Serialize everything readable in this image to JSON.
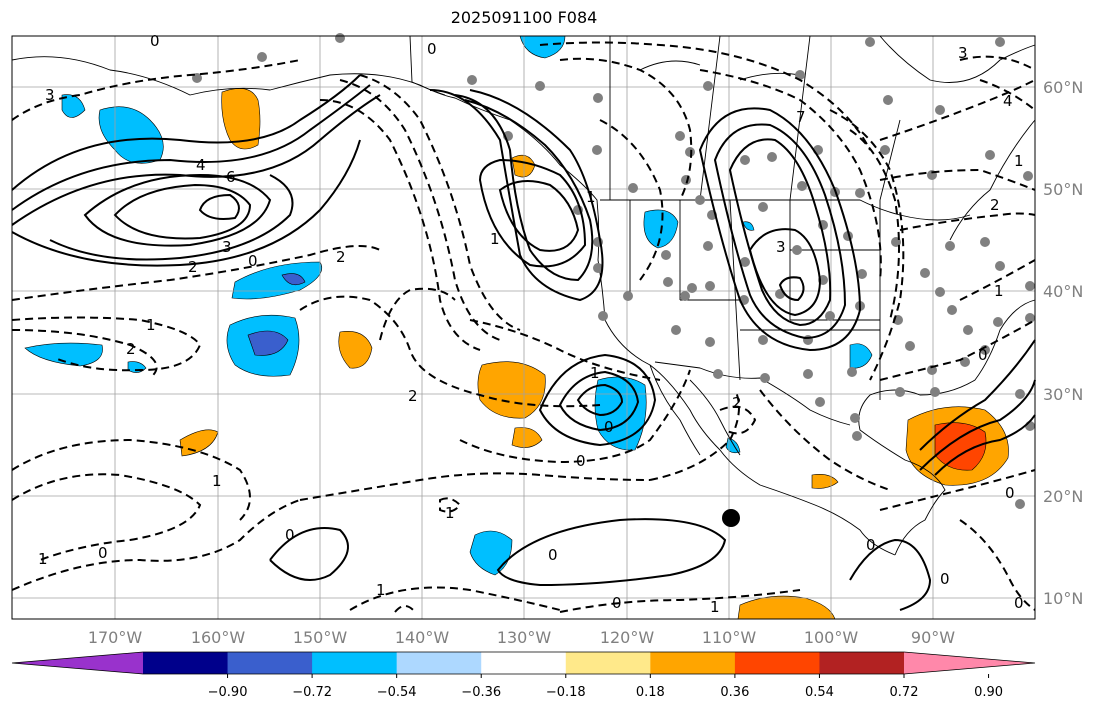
{
  "title": "2025091100 F084",
  "lon_labels": [
    "170°W",
    "160°W",
    "150°W",
    "140°W",
    "130°W",
    "120°W",
    "110°W",
    "100°W",
    "90°W"
  ],
  "lat_labels": [
    "60°N",
    "50°N",
    "40°N",
    "30°N",
    "20°N",
    "10°N"
  ],
  "colorbar": {
    "ticks": [
      "−0.90",
      "−0.72",
      "−0.54",
      "−0.36",
      "−0.18",
      "0.18",
      "0.36",
      "0.54",
      "0.72",
      "0.90"
    ],
    "colors": [
      "#9932cc",
      "#00008b",
      "#3a5fcd",
      "#00bfff",
      "#add8ff",
      "#ffffff",
      "#ffe98a",
      "#ffa500",
      "#ff4500",
      "#b22222",
      "#ff88aa"
    ]
  },
  "contour_labels": [
    "3",
    "4",
    "6",
    "3",
    "2",
    "0",
    "2",
    "1",
    "2",
    "0",
    "0",
    "2",
    "7",
    "3",
    "1",
    "0",
    "2",
    "1",
    "0",
    "0",
    "0",
    "1",
    "0",
    "1",
    "1",
    "1",
    "0",
    "3",
    "4",
    "1",
    "2",
    "0",
    "0",
    "1",
    "0",
    "0",
    "0",
    "1",
    "1"
  ],
  "colors": {
    "frame": "#000000",
    "grid": "#a0a0a0",
    "land": "#000000"
  }
}
